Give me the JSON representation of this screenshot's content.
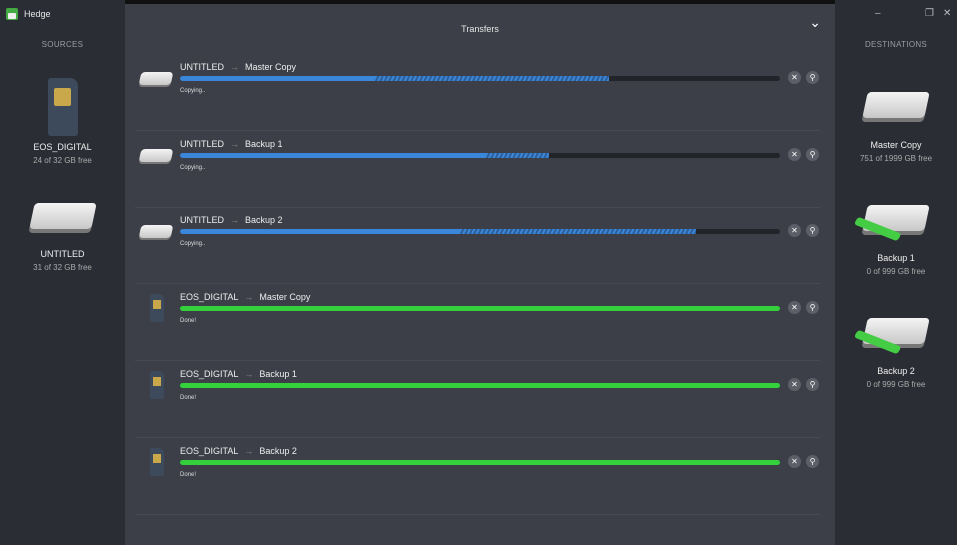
{
  "app": {
    "title": "Hedge"
  },
  "window": {
    "minimize": "–",
    "maximize": "❐",
    "close": "✕"
  },
  "sources": {
    "header": "SOURCES",
    "items": [
      {
        "name": "EOS_DIGITAL",
        "free": "24 of 32 GB free",
        "icon": "sd-card-icon"
      },
      {
        "name": "UNTITLED",
        "free": "31 of 32 GB free",
        "icon": "hard-drive-icon"
      }
    ]
  },
  "destinations": {
    "header": "DESTINATIONS",
    "items": [
      {
        "name": "Master Copy",
        "free": "751 of 1999 GB free"
      },
      {
        "name": "Backup 1",
        "free": "0 of 999 GB free"
      },
      {
        "name": "Backup 2",
        "free": "0 of 999 GB free"
      }
    ]
  },
  "transfers": {
    "title": "Transfers",
    "rows": [
      {
        "source": "UNTITLED",
        "dest": "Master Copy",
        "status": "Copying..",
        "icon": "hdd",
        "progress": 32.5,
        "buffered": 71.5,
        "done": false
      },
      {
        "source": "UNTITLED",
        "dest": "Backup 1",
        "status": "Copying..",
        "icon": "hdd",
        "progress": 51,
        "buffered": 61.5,
        "done": false
      },
      {
        "source": "UNTITLED",
        "dest": "Backup 2",
        "status": "Copying..",
        "icon": "hdd",
        "progress": 46.7,
        "buffered": 86,
        "done": false
      },
      {
        "source": "EOS_DIGITAL",
        "dest": "Master Copy",
        "status": "Done!",
        "icon": "sd",
        "progress": 100,
        "done": true
      },
      {
        "source": "EOS_DIGITAL",
        "dest": "Backup 1",
        "status": "Done!",
        "icon": "sd",
        "progress": 100,
        "done": true
      },
      {
        "source": "EOS_DIGITAL",
        "dest": "Backup 2",
        "status": "Done!",
        "icon": "sd",
        "progress": 100,
        "done": true
      }
    ],
    "arrow": "→",
    "cancel": "✕",
    "reveal": "⚲"
  },
  "colors": {
    "progress": "#3a86d8",
    "done": "#35d13c"
  }
}
